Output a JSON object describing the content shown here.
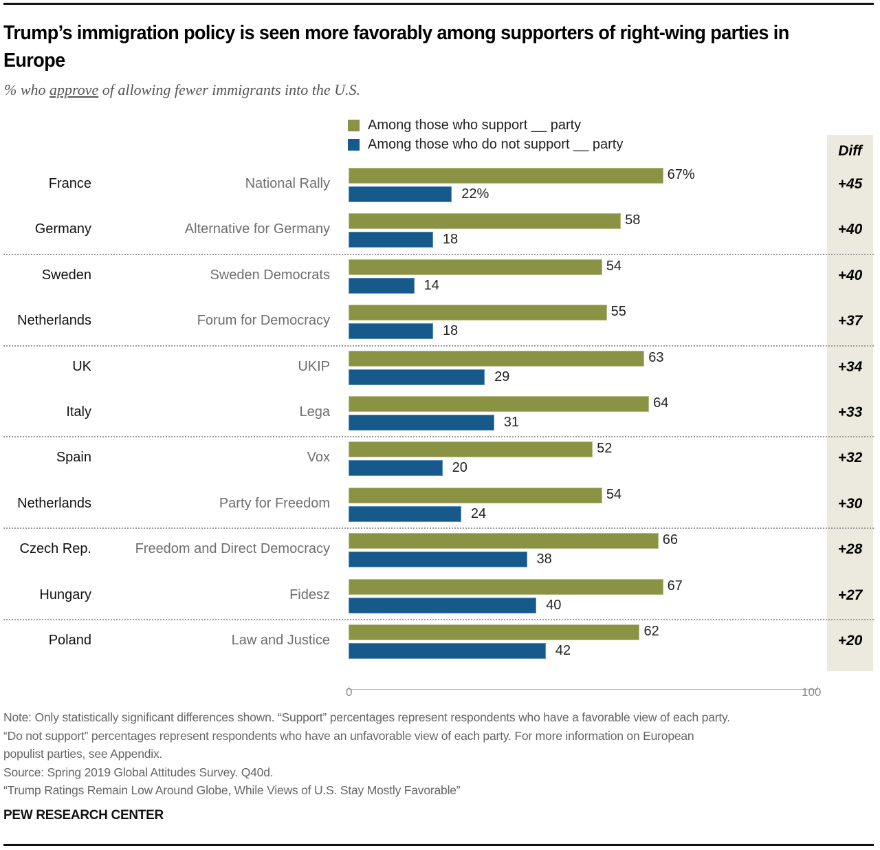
{
  "title": "Trump’s immigration policy is seen more favorably among supporters of right-wing parties in Europe",
  "subtitle": {
    "prefix": "% who ",
    "emphasis": "approve",
    "suffix": " of allowing fewer immigrants into the U.S."
  },
  "colors": {
    "support": "#8a9243",
    "not_support": "#165a8c",
    "diff_background": "#eceadf"
  },
  "chart_data": {
    "type": "bar",
    "orientation": "horizontal-grouped",
    "title": "Trump’s immigration policy is seen more favorably among supporters of right-wing parties in Europe",
    "subtitle": "% who approve of allowing fewer immigrants into the U.S.",
    "xlim": [
      0,
      100
    ],
    "x_ticks": [
      "0",
      "100"
    ],
    "legend": {
      "placement": "top",
      "entries": [
        "Among those who support __ party",
        "Among those who do not support __ party"
      ]
    },
    "diff_header": "Diff",
    "categories": [
      {
        "country": "France",
        "party": "National Rally"
      },
      {
        "country": "Germany",
        "party": "Alternative for Germany"
      },
      {
        "country": "Sweden",
        "party": "Sweden Democrats"
      },
      {
        "country": "Netherlands",
        "party": "Forum for Democracy"
      },
      {
        "country": "UK",
        "party": "UKIP"
      },
      {
        "country": "Italy",
        "party": "Lega"
      },
      {
        "country": "Spain",
        "party": "Vox"
      },
      {
        "country": "Netherlands",
        "party": "Party for Freedom"
      },
      {
        "country": "Czech Rep.",
        "party": "Freedom and Direct Democracy"
      },
      {
        "country": "Hungary",
        "party": "Fidesz"
      },
      {
        "country": "Poland",
        "party": "Law and Justice"
      }
    ],
    "series": [
      {
        "name": "Among those who support __ party",
        "values": [
          67,
          58,
          54,
          55,
          63,
          64,
          52,
          54,
          66,
          67,
          62
        ]
      },
      {
        "name": "Among those who do not support __ party",
        "values": [
          22,
          18,
          14,
          18,
          29,
          31,
          20,
          24,
          38,
          40,
          42
        ]
      }
    ],
    "value_labels": {
      "support": [
        "67%",
        "58",
        "54",
        "55",
        "63",
        "64",
        "52",
        "54",
        "66",
        "67",
        "62"
      ],
      "not_support": [
        "22%",
        "18",
        "14",
        "18",
        "29",
        "31",
        "20",
        "24",
        "38",
        "40",
        "42"
      ]
    },
    "diff": [
      "+45",
      "+40",
      "+40",
      "+37",
      "+34",
      "+33",
      "+32",
      "+30",
      "+28",
      "+27",
      "+20"
    ],
    "separators_after_rows": [
      1,
      3,
      5,
      7,
      9
    ]
  },
  "footer": {
    "notes": [
      "Note: Only statistically significant differences shown. “Support” percentages represent respondents who have a favorable view of each party.",
      "“Do not support” percentages represent respondents who have an unfavorable view of each party. For more information on European",
      "populist parties, see Appendix.",
      "Source: Spring 2019 Global Attitudes Survey. Q40d.",
      "“Trump Ratings Remain Low Around Globe, While Views of U.S. Stay Mostly Favorable”"
    ],
    "brand": "PEW RESEARCH CENTER"
  }
}
